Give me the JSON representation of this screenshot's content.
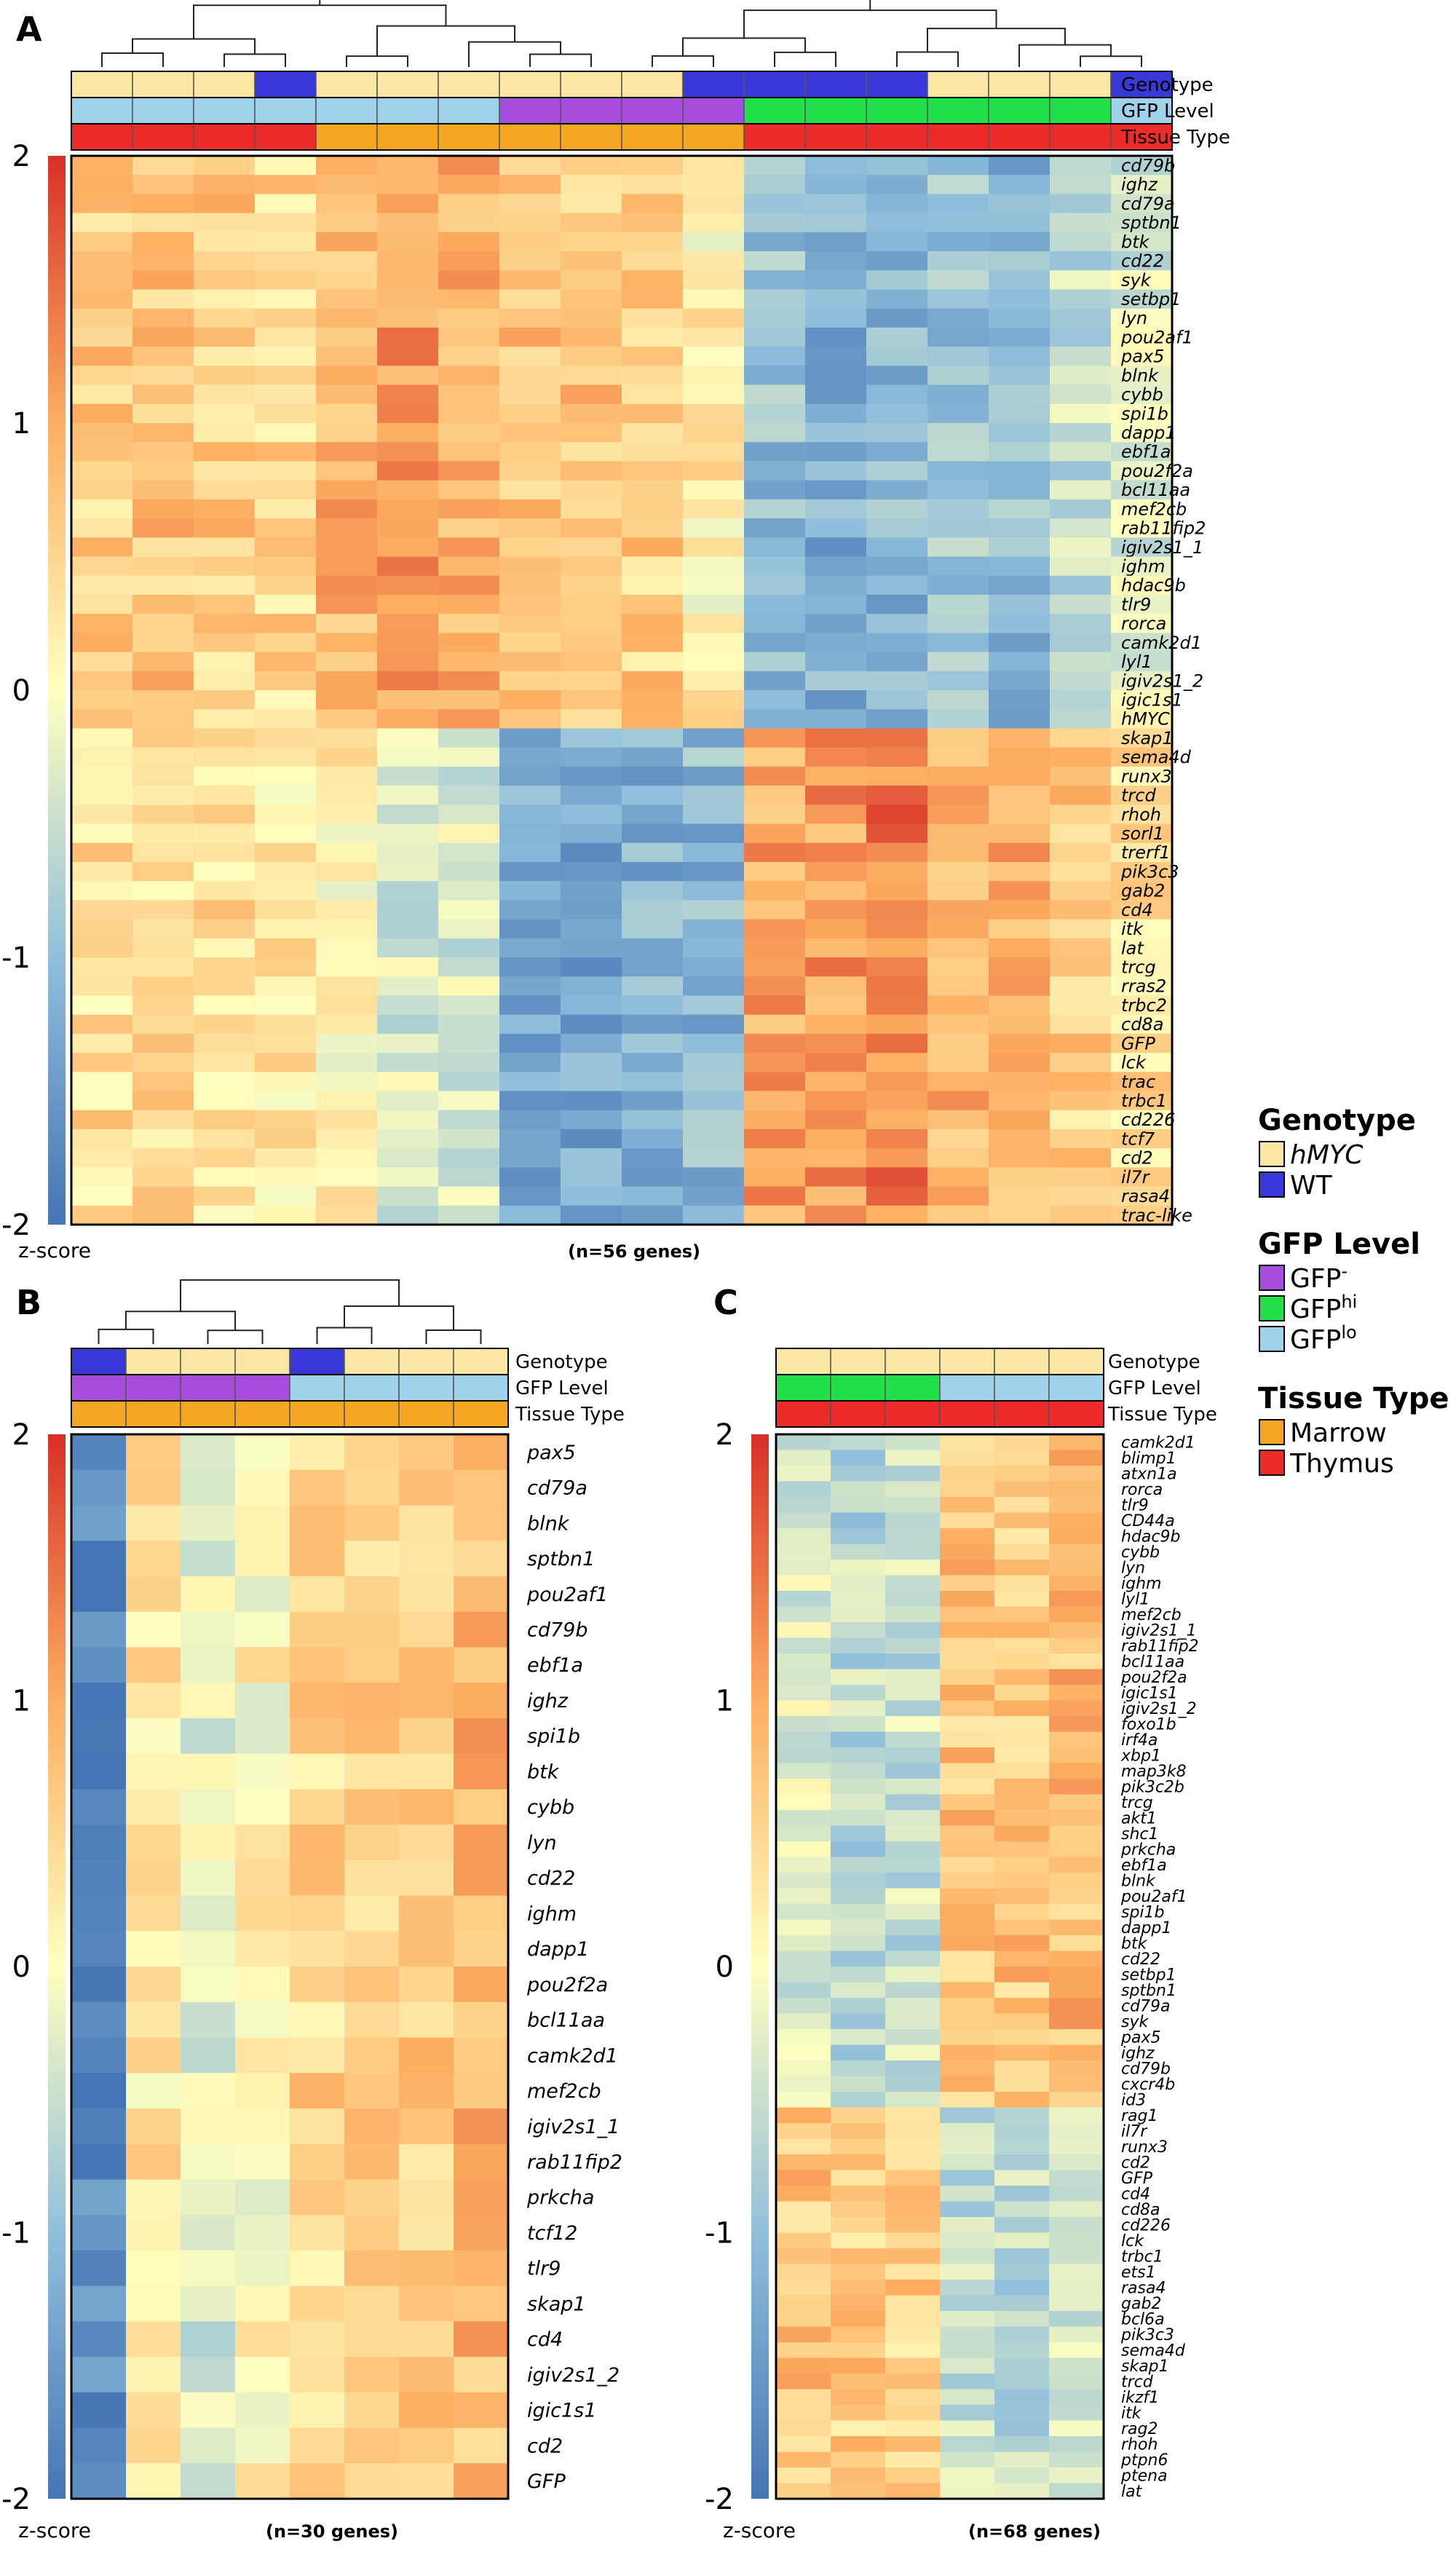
{
  "colors": {
    "scale_high": "#d73027",
    "scale_mid": "#ffffbf",
    "scale_low": "#4575b4",
    "genotype_hMYC": "#fbe6a3",
    "genotype_WT": "#3838d8",
    "gfp_minus": "#a64dde",
    "gfp_hi": "#22e04a",
    "gfp_lo": "#9fd3ec",
    "tissue_marrow": "#f5a623",
    "tissue_thymus": "#ee2b2b"
  },
  "annotation_labels": [
    "Genotype",
    "GFP Level",
    "Tissue Type"
  ],
  "legend": {
    "genotype": {
      "title": "Genotype",
      "items": [
        {
          "label": "hMYC",
          "italic": true,
          "key": "genotype_hMYC"
        },
        {
          "label": "WT",
          "italic": false,
          "key": "genotype_WT"
        }
      ]
    },
    "gfp": {
      "title": "GFP Level",
      "items": [
        {
          "label": "GFP",
          "sup": "-",
          "key": "gfp_minus"
        },
        {
          "label": "GFP",
          "sup": "hi",
          "key": "gfp_hi"
        },
        {
          "label": "GFP",
          "sup": "lo",
          "key": "gfp_lo"
        }
      ]
    },
    "tissue": {
      "title": "Tissue Type",
      "items": [
        {
          "label": "Marrow",
          "key": "tissue_marrow"
        },
        {
          "label": "Thymus",
          "key": "tissue_thymus"
        }
      ]
    }
  },
  "chart_data": [
    {
      "panel": "A",
      "type": "heatmap",
      "n_label": "(n=56 genes)",
      "scale_label": "z-score",
      "scale_ticks": [
        2,
        1,
        0,
        -1,
        -2
      ],
      "zlim": [
        -2,
        2
      ],
      "columns": 18,
      "annotations": {
        "genotype": [
          "hMYC",
          "hMYC",
          "hMYC",
          "WT",
          "hMYC",
          "hMYC",
          "hMYC",
          "hMYC",
          "hMYC",
          "hMYC",
          "WT",
          "WT",
          "WT",
          "WT",
          "hMYC",
          "hMYC",
          "hMYC",
          "WT"
        ],
        "gfp": [
          "lo",
          "lo",
          "lo",
          "lo",
          "lo",
          "lo",
          "lo",
          "minus",
          "minus",
          "minus",
          "minus",
          "hi",
          "hi",
          "hi",
          "hi",
          "hi",
          "hi",
          "lo"
        ],
        "tissue": [
          "thymus",
          "thymus",
          "thymus",
          "thymus",
          "marrow",
          "marrow",
          "marrow",
          "marrow",
          "marrow",
          "marrow",
          "marrow",
          "thymus",
          "thymus",
          "thymus",
          "thymus",
          "thymus",
          "thymus",
          "thymus"
        ]
      },
      "genes": [
        "cd79b",
        "ighz",
        "cd79a",
        "sptbn1",
        "btk",
        "cd22",
        "syk",
        "setbp1",
        "lyn",
        "pou2af1",
        "pax5",
        "blnk",
        "cybb",
        "spi1b",
        "dapp1",
        "ebf1a",
        "pou2f2a",
        "bcl11aa",
        "mef2cb",
        "rab11fip2",
        "igiv2s1_1",
        "ighm",
        "hdac9b",
        "tlr9",
        "rorca",
        "camk2d1",
        "lyl1",
        "igiv2s1_2",
        "igic1s1",
        "hMYC",
        "skap1",
        "sema4d",
        "runx3",
        "trcd",
        "rhoh",
        "sorl1",
        "trerf1",
        "pik3c3",
        "gab2",
        "cd4",
        "itk",
        "lat",
        "trcg",
        "rras2",
        "trbc2",
        "cd8a",
        "GFP",
        "lck",
        "trac",
        "trbc1",
        "cd226",
        "tcf7",
        "cd2",
        "il7r",
        "rasa4",
        "trac-like"
      ],
      "italic_genes": true,
      "pattern": {
        "top_rows": 30,
        "top": [
          0.6,
          0.7,
          0.6,
          0.5,
          0.9,
          1.1,
          0.9,
          0.8,
          0.7,
          0.6,
          0.2,
          -1.0,
          -1.2,
          -1.1,
          -0.9,
          -1.1,
          -0.5,
          -0.3
        ],
        "bottom": [
          0.4,
          0.4,
          0.4,
          0.3,
          0.1,
          -0.3,
          -0.3,
          -1.2,
          -1.3,
          -1.2,
          -1.1,
          1.0,
          1.1,
          1.4,
          0.9,
          0.9,
          0.6,
          0.4
        ]
      },
      "dendrogram": true
    },
    {
      "panel": "B",
      "type": "heatmap",
      "n_label": "(n=30 genes)",
      "scale_label": "z-score",
      "scale_ticks": [
        2,
        1,
        0,
        -1,
        -2
      ],
      "zlim": [
        -2,
        2
      ],
      "columns": 8,
      "annotations": {
        "genotype": [
          "WT",
          "hMYC",
          "hMYC",
          "hMYC",
          "WT",
          "hMYC",
          "hMYC",
          "hMYC"
        ],
        "gfp": [
          "minus",
          "minus",
          "minus",
          "minus",
          "lo",
          "lo",
          "lo",
          "lo"
        ],
        "tissue": [
          "marrow",
          "marrow",
          "marrow",
          "marrow",
          "marrow",
          "marrow",
          "marrow",
          "marrow"
        ]
      },
      "genes": [
        "pax5",
        "cd79a",
        "blnk",
        "sptbn1",
        "pou2af1",
        "cd79b",
        "ebf1a",
        "ighz",
        "spi1b",
        "btk",
        "cybb",
        "lyn",
        "cd22",
        "ighm",
        "dapp1",
        "pou2f2a",
        "bcl11aa",
        "camk2d1",
        "mef2cb",
        "igiv2s1_1",
        "rab11fip2",
        "prkcha",
        "tcf12",
        "tlr9",
        "skap1",
        "cd4",
        "igiv2s1_2",
        "igic1s1",
        "cd2",
        "GFP"
      ],
      "italic_genes": true,
      "pattern": {
        "top_rows": 30,
        "top": [
          -1.8,
          0.3,
          -0.3,
          0.1,
          0.5,
          0.5,
          0.6,
          0.8
        ],
        "bottom": [
          -1.8,
          0.3,
          -0.3,
          0.1,
          0.5,
          0.5,
          0.6,
          0.8
        ]
      },
      "dendrogram": true
    },
    {
      "panel": "C",
      "type": "heatmap",
      "n_label": "(n=68 genes)",
      "scale_label": "z-score",
      "scale_ticks": [
        2,
        1,
        0,
        -1,
        -2
      ],
      "zlim": [
        -2,
        2
      ],
      "columns": 6,
      "annotations": {
        "genotype": [
          "hMYC",
          "hMYC",
          "hMYC",
          "hMYC",
          "hMYC",
          "hMYC"
        ],
        "gfp": [
          "hi",
          "hi",
          "hi",
          "lo",
          "lo",
          "lo"
        ],
        "tissue": [
          "thymus",
          "thymus",
          "thymus",
          "thymus",
          "thymus",
          "thymus"
        ]
      },
      "genes": [
        "camk2d1",
        "blimp1",
        "atxn1a",
        "rorca",
        "tlr9",
        "CD44a",
        "hdac9b",
        "cybb",
        "lyn",
        "ighm",
        "lyl1",
        "mef2cb",
        "igiv2s1_1",
        "rab11fip2",
        "bcl11aa",
        "pou2f2a",
        "igic1s1",
        "igiv2s1_2",
        "foxo1b",
        "irf4a",
        "xbp1",
        "map3k8",
        "pik3c2b",
        "trcg",
        "akt1",
        "shc1",
        "prkcha",
        "ebf1a",
        "blnk",
        "pou2af1",
        "spi1b",
        "dapp1",
        "btk",
        "cd22",
        "setbp1",
        "sptbn1",
        "cd79a",
        "syk",
        "pax5",
        "ighz",
        "cd79b",
        "cxcr4b",
        "id3",
        "rag1",
        "il7r",
        "runx3",
        "cd2",
        "GFP",
        "cd4",
        "cd8a",
        "cd226",
        "lck",
        "trbc1",
        "ets1",
        "rasa4",
        "gab2",
        "bcl6a",
        "pik3c3",
        "sema4d",
        "skap1",
        "trcd",
        "ikzf1",
        "itk",
        "rag2",
        "rhoh",
        "ptpn6",
        "ptena",
        "lat"
      ],
      "italic_genes": true,
      "pattern": {
        "top_rows": 43,
        "top": [
          -0.3,
          -0.6,
          -0.5,
          0.7,
          0.7,
          0.8
        ],
        "bottom": [
          0.7,
          0.6,
          0.6,
          -0.5,
          -0.6,
          -0.5
        ]
      },
      "dendrogram": false
    }
  ]
}
